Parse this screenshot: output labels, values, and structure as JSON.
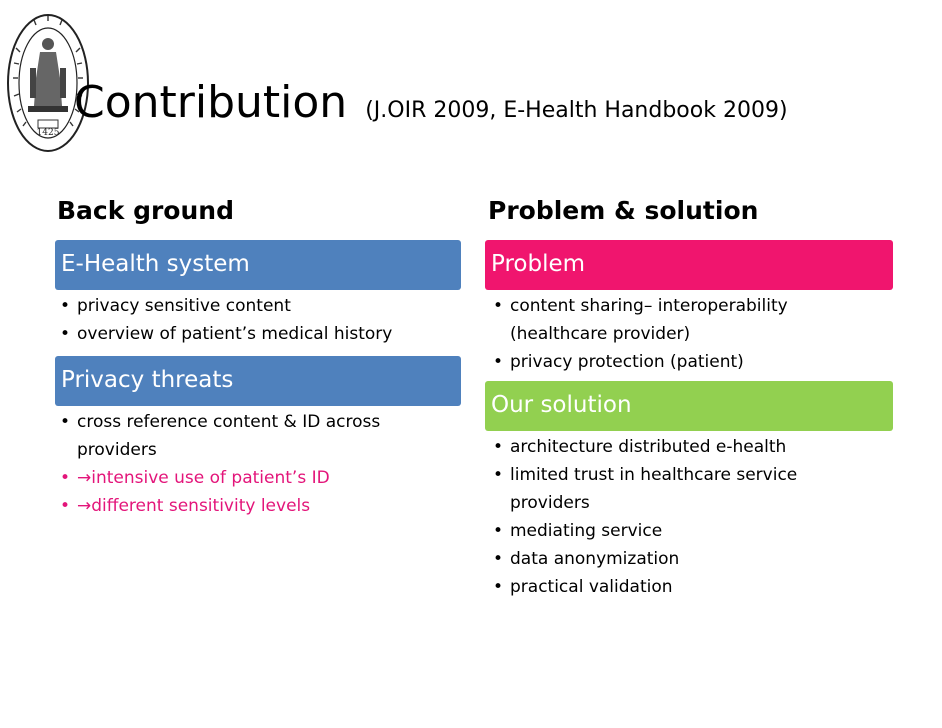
{
  "header": {
    "title": "Contribution",
    "subtitle": "(J.OIR 2009, E-Health Handbook 2009)"
  },
  "left": {
    "heading": "Back ground",
    "sections": [
      {
        "label": "E-Health system",
        "color": "#4f81bd",
        "items": [
          {
            "text": "privacy sensitive content",
            "highlight": false
          },
          {
            "text": "overview of patient’s medical history",
            "highlight": false
          }
        ]
      },
      {
        "label": "Privacy threats",
        "color": "#4f81bd",
        "items": [
          {
            "line1": "cross reference content & ID across",
            "line2": "providers",
            "highlight": false
          },
          {
            "arrow": "→",
            "text": "intensive use of patient’s ID",
            "highlight": true
          },
          {
            "arrow": "→",
            "text": "different sensitivity levels",
            "highlight": true
          }
        ]
      }
    ]
  },
  "right": {
    "heading": "Problem & solution",
    "sections": [
      {
        "label": "Problem",
        "color": "#f0156e",
        "items": [
          {
            "line1": "content sharing– interoperability",
            "line2": "(healthcare provider)"
          },
          {
            "text": "privacy protection (patient)"
          }
        ]
      },
      {
        "label": "Our solution",
        "color": "#92d050",
        "items": [
          {
            "text": "architecture distributed e-health"
          },
          {
            "line1": "limited trust in healthcare service",
            "line2": "providers"
          },
          {
            "text": "mediating service"
          },
          {
            "text": "data anonymization"
          },
          {
            "text": "practical validation"
          }
        ]
      }
    ]
  },
  "seal": {
    "icon": "university-seal-icon",
    "year": "1425"
  },
  "colors": {
    "highlight": "#e3157a",
    "blue": "#4f81bd",
    "pink": "#f0156e",
    "green": "#92d050"
  }
}
